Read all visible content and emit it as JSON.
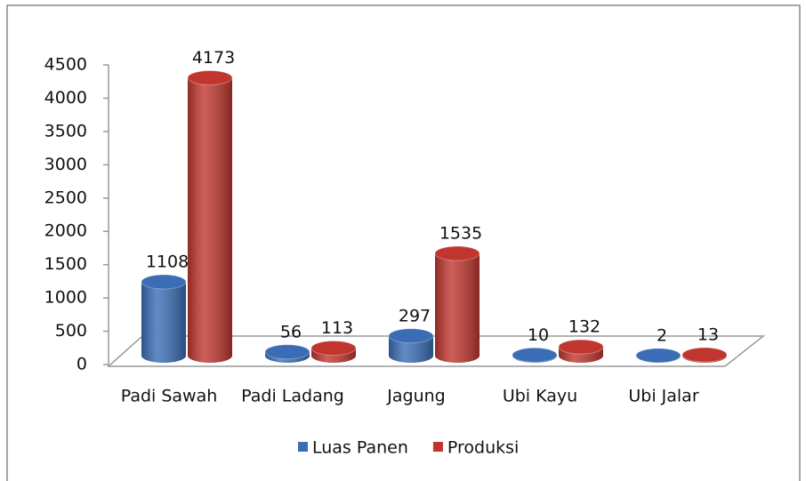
{
  "chart_data": {
    "type": "bar3d",
    "categories": [
      "Padi Sawah",
      "Padi Ladang",
      "Jagung",
      "Ubi Kayu",
      "Ubi Jalar"
    ],
    "series": [
      {
        "name": "Luas Panen",
        "color": "#3a6db5",
        "values": [
          1108,
          56,
          297,
          10,
          2
        ]
      },
      {
        "name": "Produksi",
        "color": "#c0362f",
        "values": [
          4173,
          113,
          1535,
          132,
          13
        ]
      }
    ],
    "ylim": [
      0,
      4500
    ],
    "yticks": [
      0,
      500,
      1000,
      1500,
      2000,
      2500,
      3000,
      3500,
      4000,
      4500
    ],
    "legend": "bottom",
    "grid": false
  }
}
